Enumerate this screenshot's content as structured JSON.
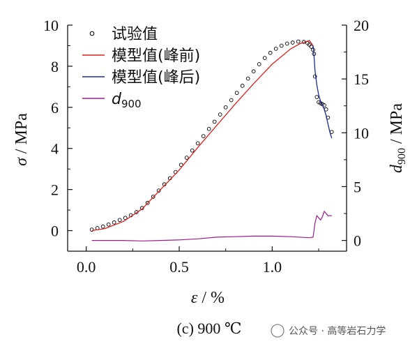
{
  "chart_data": {
    "type": "line",
    "xlabel": "ε / %",
    "ylabel_left": "σ / MPa",
    "ylabel_right": "d900 / MPa",
    "xlim": [
      -0.1,
      1.4
    ],
    "ylim_left": [
      -1,
      10
    ],
    "ylim_right": [
      -1,
      20
    ],
    "x_ticks": [
      "0.0",
      "0.5",
      "1.0"
    ],
    "y_left_ticks": [
      "10",
      "8",
      "6",
      "4",
      "2",
      "0"
    ],
    "y_right_ticks": [
      "20",
      "15",
      "10",
      "5",
      "0"
    ],
    "legend_position": "top-left",
    "caption": "(c) 900 ℃",
    "watermark": "公众号 · 高等岩石力学",
    "series": [
      {
        "name": "试验值",
        "kind": "scatter",
        "axis": "left",
        "color": "#000000",
        "x": [
          0.03,
          0.06,
          0.09,
          0.12,
          0.15,
          0.18,
          0.21,
          0.24,
          0.27,
          0.3,
          0.33,
          0.36,
          0.39,
          0.42,
          0.45,
          0.48,
          0.51,
          0.54,
          0.57,
          0.6,
          0.63,
          0.66,
          0.69,
          0.72,
          0.75,
          0.78,
          0.81,
          0.84,
          0.87,
          0.9,
          0.93,
          0.96,
          0.99,
          1.02,
          1.05,
          1.08,
          1.11,
          1.14,
          1.17,
          1.19,
          1.2,
          1.21,
          1.22,
          1.225,
          1.23,
          1.24,
          1.25,
          1.26,
          1.27,
          1.28,
          1.29,
          1.3,
          1.32
        ],
        "y": [
          0.05,
          0.12,
          0.2,
          0.3,
          0.4,
          0.52,
          0.62,
          0.75,
          0.9,
          1.1,
          1.35,
          1.65,
          1.95,
          2.25,
          2.55,
          2.85,
          3.2,
          3.55,
          3.9,
          4.25,
          4.6,
          4.95,
          5.3,
          5.65,
          6.0,
          6.35,
          6.7,
          7.05,
          7.4,
          7.75,
          8.1,
          8.4,
          8.65,
          8.85,
          9.0,
          9.1,
          9.15,
          9.2,
          9.18,
          9.12,
          9.05,
          8.95,
          8.8,
          8.6,
          7.5,
          6.5,
          6.25,
          6.2,
          6.15,
          6.1,
          5.9,
          5.5,
          4.8
        ]
      },
      {
        "name": "模型值(峰前)",
        "kind": "line",
        "axis": "left",
        "color": "#e02020",
        "x": [
          0.03,
          0.1,
          0.2,
          0.3,
          0.4,
          0.5,
          0.6,
          0.7,
          0.8,
          0.9,
          1.0,
          1.1,
          1.15,
          1.2,
          1.22
        ],
        "y": [
          0.0,
          0.1,
          0.45,
          1.05,
          2.0,
          2.95,
          4.05,
          5.1,
          6.15,
          7.15,
          8.1,
          8.85,
          9.1,
          9.25,
          9.0
        ]
      },
      {
        "name": "模型值(峰后)",
        "kind": "line",
        "axis": "left",
        "color": "#1f2a9a",
        "x": [
          1.22,
          1.225,
          1.23,
          1.24,
          1.25,
          1.26,
          1.27,
          1.28,
          1.29,
          1.3,
          1.31,
          1.32
        ],
        "y": [
          9.0,
          8.5,
          7.8,
          7.1,
          6.6,
          6.3,
          6.1,
          5.9,
          5.6,
          5.2,
          4.8,
          4.5
        ]
      },
      {
        "name": "d900",
        "kind": "line",
        "axis": "right",
        "color": "#9a1d8f",
        "x": [
          0.03,
          0.1,
          0.2,
          0.3,
          0.4,
          0.5,
          0.6,
          0.7,
          0.8,
          0.9,
          1.0,
          1.1,
          1.2,
          1.22,
          1.23,
          1.24,
          1.25,
          1.26,
          1.27,
          1.28,
          1.29,
          1.3,
          1.32
        ],
        "y": [
          0.0,
          0.0,
          0.0,
          -0.05,
          0.0,
          0.05,
          0.15,
          0.3,
          0.35,
          0.4,
          0.4,
          0.35,
          0.25,
          0.3,
          1.6,
          2.3,
          2.1,
          1.9,
          2.2,
          2.7,
          2.5,
          2.3,
          2.3
        ]
      }
    ]
  }
}
